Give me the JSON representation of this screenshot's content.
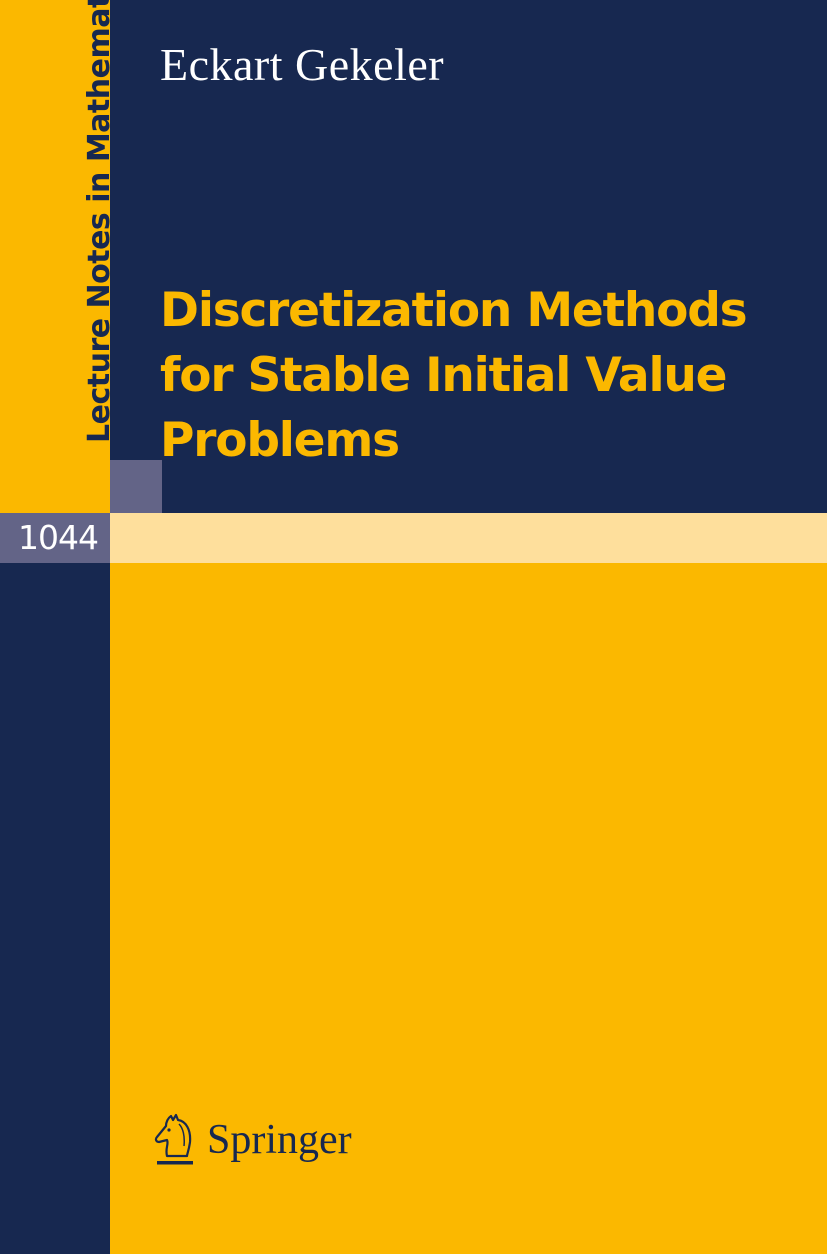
{
  "cover": {
    "series": "Lecture Notes in Mathematics",
    "volume": "1044",
    "author": "Eckart Gekeler",
    "title_lines": [
      "Discretization Methods",
      "for Stable Initial Value",
      "Problems"
    ],
    "publisher": "Springer",
    "publisher_logo_icon": "knight-chess-piece-icon"
  },
  "colors": {
    "navy": "#172850",
    "yellow": "#fbb800",
    "light_yellow": "#fedf9c",
    "gray": "#636487"
  }
}
